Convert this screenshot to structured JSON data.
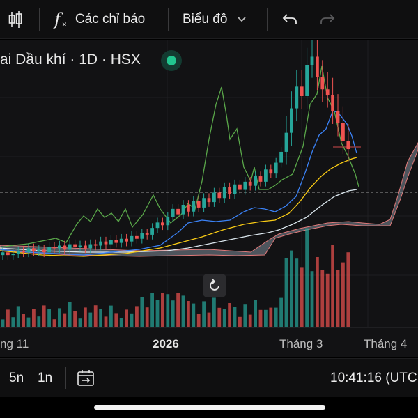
{
  "toolbar": {
    "indicators_icon": "function-fx-icon",
    "indicators_label": "Các chỉ báo",
    "chart_type_label": "Biểu đồ"
  },
  "symbol": {
    "text": "ai Dầu khí · 1D · HSX",
    "status_color": "#22c58f"
  },
  "x_axis": {
    "labels": [
      "ng 11",
      "2026",
      "Tháng 3",
      "Tháng 4"
    ]
  },
  "bottombar": {
    "range_5y": "5n",
    "range_1y": "1n",
    "time": "10:41:16 (UTC"
  },
  "colors": {
    "up": "#26a69a",
    "down": "#ef5350",
    "ma_short": "#3b82f6",
    "ma_mid": "#facc15",
    "ma_long": "#e6f0f5",
    "rsi_line": "#5aa84a",
    "cloud": "#b8c4d0"
  },
  "chart_data": {
    "type": "candlestick",
    "interval": "1D",
    "x_tick_labels": [
      "ng 11",
      "2026",
      "Tháng 3",
      "Tháng 4"
    ],
    "trend": "sideways then sharp rally in March, then pullback",
    "close_series": [
      22.0,
      21.8,
      21.9,
      22.1,
      22.0,
      22.3,
      22.1,
      22.2,
      22.0,
      22.4,
      22.3,
      22.5,
      22.2,
      22.6,
      22.4,
      22.5,
      22.3,
      22.6,
      22.5,
      22.8,
      22.6,
      22.9,
      22.7,
      23.0,
      22.8,
      23.2,
      23.0,
      23.4,
      23.3,
      23.8,
      24.2,
      24.0,
      24.6,
      25.2,
      24.8,
      25.5,
      25.0,
      25.8,
      25.3,
      26.0,
      25.7,
      26.4,
      26.0,
      26.8,
      26.3,
      27.0,
      26.6,
      27.2,
      26.9,
      27.6,
      27.2,
      28.1,
      27.8,
      28.6,
      29.4,
      30.8,
      32.6,
      34.2,
      33.5,
      35.8,
      36.4,
      34.9,
      34.0,
      33.6,
      32.4,
      31.5,
      30.2,
      29.6
    ]
  }
}
